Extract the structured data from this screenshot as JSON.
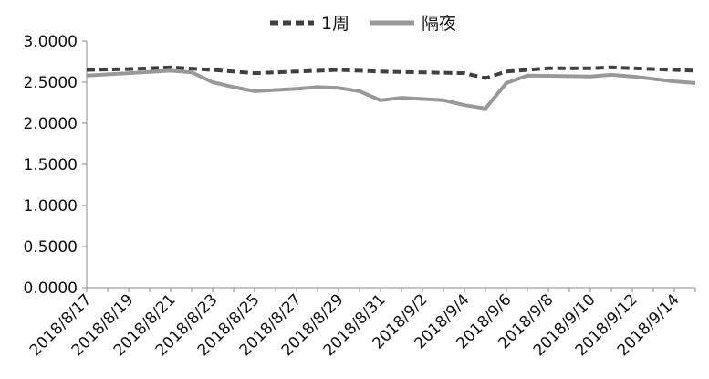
{
  "chart_data": {
    "type": "line",
    "title": "",
    "xlabel": "",
    "ylabel": "",
    "ylim": [
      0,
      3
    ],
    "y_ticks": [
      "0.0000",
      "0.5000",
      "1.0000",
      "1.5000",
      "2.0000",
      "2.5000",
      "3.0000"
    ],
    "x_tick_labels": [
      "2018/8/17",
      "2018/8/19",
      "2018/8/21",
      "2018/8/23",
      "2018/8/25",
      "2018/8/27",
      "2018/8/29",
      "2018/8/31",
      "2018/9/2",
      "2018/9/4",
      "2018/9/6",
      "2018/9/8",
      "2018/9/10",
      "2018/9/12",
      "2018/9/14"
    ],
    "x_range": [
      "2018-08-17",
      "2018-09-15"
    ],
    "grid": false,
    "legend_position": "top",
    "series": [
      {
        "name": "1周",
        "style": "dashed",
        "color": "#404040",
        "points": [
          [
            "2018-08-17",
            2.65
          ],
          [
            "2018-08-19",
            2.66
          ],
          [
            "2018-08-21",
            2.68
          ],
          [
            "2018-08-23",
            2.65
          ],
          [
            "2018-08-25",
            2.61
          ],
          [
            "2018-08-27",
            2.63
          ],
          [
            "2018-08-29",
            2.65
          ],
          [
            "2018-08-31",
            2.63
          ],
          [
            "2018-09-02",
            2.62
          ],
          [
            "2018-09-04",
            2.61
          ],
          [
            "2018-09-05",
            2.55
          ],
          [
            "2018-09-06",
            2.63
          ],
          [
            "2018-09-08",
            2.67
          ],
          [
            "2018-09-10",
            2.67
          ],
          [
            "2018-09-11",
            2.68
          ],
          [
            "2018-09-12",
            2.67
          ],
          [
            "2018-09-14",
            2.65
          ],
          [
            "2018-09-15",
            2.64
          ]
        ]
      },
      {
        "name": "隔夜",
        "style": "solid",
        "color": "#999999",
        "points": [
          [
            "2018-08-17",
            2.58
          ],
          [
            "2018-08-19",
            2.61
          ],
          [
            "2018-08-21",
            2.64
          ],
          [
            "2018-08-22",
            2.62
          ],
          [
            "2018-08-23",
            2.5
          ],
          [
            "2018-08-24",
            2.44
          ],
          [
            "2018-08-25",
            2.39
          ],
          [
            "2018-08-27",
            2.42
          ],
          [
            "2018-08-28",
            2.44
          ],
          [
            "2018-08-29",
            2.43
          ],
          [
            "2018-08-30",
            2.39
          ],
          [
            "2018-08-31",
            2.28
          ],
          [
            "2018-09-01",
            2.31
          ],
          [
            "2018-09-03",
            2.28
          ],
          [
            "2018-09-04",
            2.22
          ],
          [
            "2018-09-05",
            2.18
          ],
          [
            "2018-09-06",
            2.49
          ],
          [
            "2018-09-07",
            2.58
          ],
          [
            "2018-09-10",
            2.57
          ],
          [
            "2018-09-11",
            2.59
          ],
          [
            "2018-09-12",
            2.57
          ],
          [
            "2018-09-14",
            2.51
          ],
          [
            "2018-09-15",
            2.49
          ]
        ]
      }
    ]
  }
}
